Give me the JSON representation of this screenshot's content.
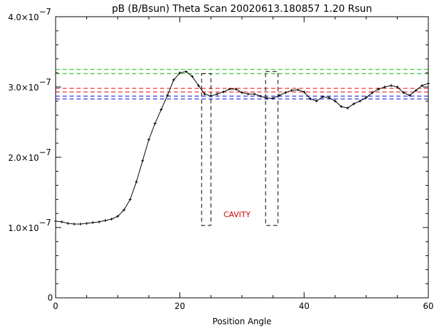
{
  "chart_data": {
    "type": "line",
    "title": "pB (B/Bsun) Theta Scan 20020613.180857 1.20 Rsun",
    "xlabel": "Position Angle",
    "ylabel": "",
    "xlim": [
      0,
      60
    ],
    "ylim": [
      0,
      4e-07
    ],
    "grid": false,
    "x_ticks": [
      {
        "value": 0,
        "label": "0"
      },
      {
        "value": 20,
        "label": "20"
      },
      {
        "value": 40,
        "label": "40"
      },
      {
        "value": 60,
        "label": "60"
      }
    ],
    "y_ticks": [
      {
        "value": 0,
        "label": "0",
        "exp": ""
      },
      {
        "value": 1e-07,
        "label": "1.0×10",
        "exp": "−7"
      },
      {
        "value": 2e-07,
        "label": "2.0×10",
        "exp": "−7"
      },
      {
        "value": 3e-07,
        "label": "3.0×10",
        "exp": "−7"
      },
      {
        "value": 4e-07,
        "label": "4.0×10",
        "exp": "−7"
      }
    ],
    "series": [
      {
        "style": "solid line with plus markers",
        "color": "#000000",
        "x": [
          0,
          1,
          2,
          3,
          4,
          5,
          6,
          7,
          8,
          9,
          10,
          11,
          12,
          13,
          14,
          15,
          16,
          17,
          18,
          19,
          20,
          21,
          22,
          23,
          24,
          25,
          26,
          27,
          28,
          29,
          30,
          31,
          32,
          33,
          34,
          35,
          36,
          37,
          38,
          39,
          40,
          41,
          42,
          43,
          44,
          45,
          46,
          47,
          48,
          49,
          50,
          51,
          52,
          53,
          54,
          55,
          56,
          57,
          58,
          59,
          60
        ],
        "values": [
          1.09e-07,
          1.08e-07,
          1.06e-07,
          1.05e-07,
          1.05e-07,
          1.06e-07,
          1.07e-07,
          1.08e-07,
          1.1e-07,
          1.12e-07,
          1.16e-07,
          1.25e-07,
          1.4e-07,
          1.65e-07,
          1.95e-07,
          2.25e-07,
          2.48e-07,
          2.68e-07,
          2.88e-07,
          3.1e-07,
          3.2e-07,
          3.22e-07,
          3.15e-07,
          3.02e-07,
          2.9e-07,
          2.87e-07,
          2.9e-07,
          2.93e-07,
          2.97e-07,
          2.97e-07,
          2.92e-07,
          2.9e-07,
          2.9e-07,
          2.87e-07,
          2.84e-07,
          2.84e-07,
          2.88e-07,
          2.92e-07,
          2.95e-07,
          2.96e-07,
          2.93e-07,
          2.83e-07,
          2.8e-07,
          2.86e-07,
          2.85e-07,
          2.8e-07,
          2.72e-07,
          2.7e-07,
          2.76e-07,
          2.8e-07,
          2.85e-07,
          2.92e-07,
          2.97e-07,
          3e-07,
          3.02e-07,
          3e-07,
          2.92e-07,
          2.88e-07,
          2.95e-07,
          3.02e-07,
          3.05e-07
        ]
      }
    ],
    "reference_lines": [
      {
        "y": 3.25e-07,
        "color": "#00c000"
      },
      {
        "y": 3.19e-07,
        "color": "#00c000"
      },
      {
        "y": 2.98e-07,
        "color": "#e00000"
      },
      {
        "y": 2.93e-07,
        "color": "#e00000"
      },
      {
        "y": 2.87e-07,
        "color": "#0000e0"
      },
      {
        "y": 2.83e-07,
        "color": "#0000e0"
      }
    ],
    "boxes": [
      {
        "x0": 23.5,
        "x1": 25.0,
        "y0": 1.03e-07,
        "y1": 3.19e-07
      },
      {
        "x0": 33.8,
        "x1": 35.8,
        "y0": 1.03e-07,
        "y1": 3.22e-07
      }
    ],
    "annotations": [
      {
        "text": "CAVITY",
        "x": 29.2,
        "y": 1.15e-07,
        "color": "#cc0000"
      }
    ]
  }
}
